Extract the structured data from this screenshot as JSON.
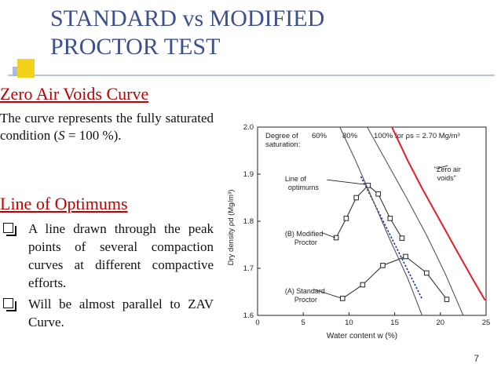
{
  "title": [
    "STANDARD vs MODIFIED",
    "PROCTOR TEST"
  ],
  "zav": {
    "heading": "Zero Air Voids Curve",
    "text_pre": "The curve represents the fully saturated condition (",
    "text_var": "S",
    "text_post": " = 100 %)."
  },
  "optimums": {
    "heading": "Line of Optimums",
    "bullets": [
      "A line drawn through the peak points of several compaction curves at different compactive efforts.",
      "Will be almost parallel to ZAV Curve."
    ]
  },
  "page_number": "7",
  "chart_data": {
    "type": "line",
    "xlabel": "Water content w (%)",
    "ylabel": "Dry density ρd (Mg/m³)",
    "xlim": [
      0,
      25
    ],
    "ylim": [
      1.6,
      2.0
    ],
    "x_ticks": [
      0,
      5,
      10,
      15,
      20,
      25
    ],
    "y_ticks": [
      1.6,
      1.7,
      1.8,
      1.9,
      2.0
    ],
    "tick_labels_x": [
      "0",
      "5",
      "10",
      "15",
      "20",
      "25"
    ],
    "tick_labels_y": [
      "1.6",
      "1.7",
      "1.8",
      "1.9",
      "2.0"
    ],
    "saturation_label": "Degree of saturation:",
    "saturation_values": [
      "60%",
      "80%",
      "100% for ρs = 2.70 Mg/m³"
    ],
    "series": [
      {
        "name": "(A) Standard Proctor",
        "color": "#333333",
        "values": [
          [
            9.3,
            1.636
          ],
          [
            11.5,
            1.665
          ],
          [
            13.7,
            1.706
          ],
          [
            16.2,
            1.725
          ],
          [
            18.5,
            1.69
          ],
          [
            20.7,
            1.634
          ]
        ]
      },
      {
        "name": "(B) Modified Proctor",
        "color": "#333333",
        "values": [
          [
            8.6,
            1.765
          ],
          [
            9.7,
            1.806
          ],
          [
            10.8,
            1.85
          ],
          [
            12.1,
            1.876
          ],
          [
            13.2,
            1.858
          ],
          [
            14.5,
            1.806
          ],
          [
            15.8,
            1.764
          ]
        ]
      },
      {
        "name": "Line of optimums",
        "color": "#1f2f9a",
        "values": [
          [
            11.3,
            1.895
          ],
          [
            18.0,
            1.635
          ]
        ]
      },
      {
        "name": "Zero air voids",
        "color": "#e21f26",
        "values": [
          [
            14.7,
            2.0
          ],
          [
            16.4,
            1.93
          ],
          [
            18.0,
            1.87
          ],
          [
            20.0,
            1.8
          ],
          [
            22.0,
            1.73
          ],
          [
            23.6,
            1.675
          ],
          [
            24.9,
            1.632
          ]
        ]
      },
      {
        "name": "60% saturation",
        "color": "#555555",
        "values": [
          [
            9.0,
            2.0
          ],
          [
            10.7,
            1.93
          ],
          [
            12.5,
            1.85
          ],
          [
            14.5,
            1.76
          ],
          [
            16.4,
            1.68
          ],
          [
            18.0,
            1.6
          ]
        ]
      },
      {
        "name": "80% saturation",
        "color": "#555555",
        "values": [
          [
            12.0,
            2.0
          ],
          [
            14.0,
            1.93
          ],
          [
            16.3,
            1.85
          ],
          [
            18.5,
            1.77
          ],
          [
            20.5,
            1.69
          ],
          [
            22.5,
            1.6
          ]
        ]
      }
    ],
    "annotations": [
      {
        "text": "\"Zero air",
        "text2": "voids\"",
        "x": 19.3,
        "y": 1.905
      },
      {
        "text": "Line of",
        "text2": "optimums",
        "x": 3.0,
        "y": 1.885
      },
      {
        "text": "(B) Modified",
        "text2": "Proctor",
        "x": 3.0,
        "y": 1.768
      },
      {
        "text": "(A) Standard",
        "text2": "Proctor",
        "x": 3.0,
        "y": 1.647
      }
    ]
  }
}
